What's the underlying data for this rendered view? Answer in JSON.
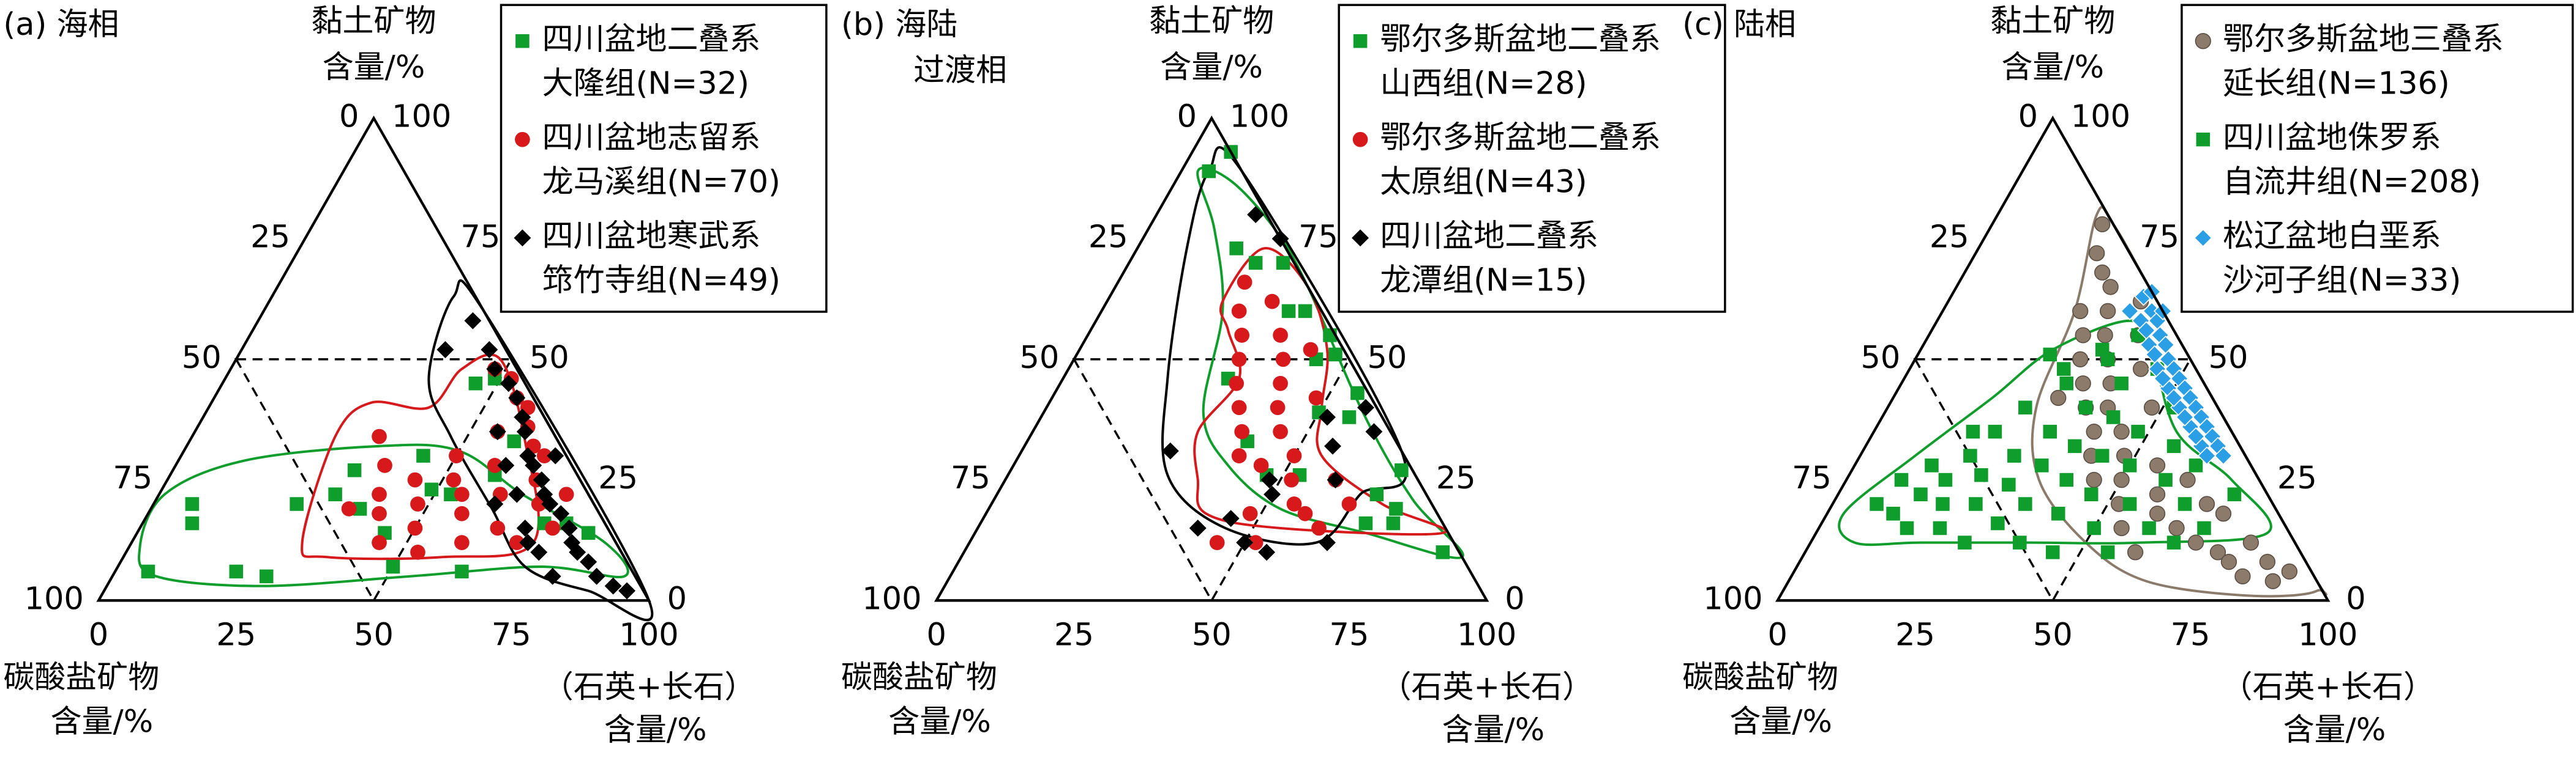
{
  "chart_data": [
    {
      "type": "ternary",
      "panel_label": [
        "(a) 海相"
      ],
      "top_axis_title": [
        "黏土矿物",
        "含量/%"
      ],
      "left_axis_title": [
        "碳酸盐矿物",
        "含量/%"
      ],
      "right_axis_title": [
        "（石英+长石）",
        "含量/%"
      ],
      "carbonate_ticks": [
        0,
        25,
        50,
        75,
        100
      ],
      "clay_ticks": [
        0,
        25,
        50,
        75,
        100
      ],
      "quartz_feldspar_ticks": [
        0,
        25,
        50,
        75,
        100
      ],
      "series": [
        {
          "name": [
            "四川盆地二叠系",
            "大隆组(N=32)"
          ],
          "color": "#0f9d2c",
          "marker": "square",
          "quartz_feldspar": [
            7,
            9,
            6,
            22,
            28,
            26,
            33,
            32,
            38,
            45,
            44,
            49,
            53,
            46,
            59,
            59,
            73,
            77,
            82,
            49,
            63,
            50
          ],
          "clay": [
            20,
            16,
            6,
            6,
            5,
            20,
            27,
            22,
            19,
            14,
            30,
            23,
            22,
            45,
            26,
            33,
            16,
            16,
            14,
            46,
            6,
            7
          ],
          "envelope": {
            "quartz_feldspar": [
              2,
              8,
              28,
              54,
              77,
              93,
              86,
              66,
              50,
              35,
              12,
              1
            ],
            "clay": [
              11,
              5,
              3,
              5,
              7,
              5,
              12,
              22,
              31,
              32,
              29,
              22
            ]
          }
        },
        {
          "name": [
            "四川盆地志留系",
            "龙马溪组(N=70)"
          ],
          "color": "#d7191c",
          "marker": "circle",
          "quartz_feldspar": [
            38,
            40,
            42,
            45,
            45,
            48,
            50,
            50,
            52,
            53,
            55,
            55,
            57,
            58,
            60,
            58,
            62,
            63,
            65,
            55,
            67,
            60,
            70,
            70,
            66,
            74,
            75,
            52,
            48,
            34,
            36
          ],
          "clay": [
            28,
            22,
            18,
            25,
            12,
            20,
            30,
            15,
            25,
            10,
            22,
            35,
            18,
            28,
            12,
            40,
            22,
            32,
            15,
            42,
            25,
            36,
            20,
            12,
            30,
            22,
            15,
            46,
            48,
            34,
            19
          ],
          "envelope": {
            "quartz_feldspar": [
              31,
              26,
              29,
              40,
              42,
              48,
              61,
              73,
              58,
              37
            ],
            "clay": [
              12,
              34,
              41,
              40,
              48,
              50,
              33,
              12,
              9,
              9
            ]
          }
        },
        {
          "name": [
            "四川盆地寒武系",
            "筇竹寺组(N=49)"
          ],
          "color": "#000000",
          "marker": "diamond",
          "quartz_feldspar": [
            39,
            37,
            45,
            48,
            52,
            55,
            58,
            55,
            60,
            63,
            60,
            65,
            68,
            70,
            65,
            72,
            75,
            70,
            78,
            80,
            75,
            82,
            85,
            88,
            80,
            92,
            95,
            62,
            72,
            68
          ],
          "clay": [
            58,
            52,
            52,
            48,
            45,
            42,
            38,
            35,
            35,
            30,
            28,
            28,
            25,
            22,
            22,
            20,
            18,
            15,
            15,
            12,
            10,
            10,
            8,
            5,
            5,
            3,
            2,
            20,
            12,
            30
          ],
          "envelope": {
            "quartz_feldspar": [
              33,
              40,
              100,
              88,
              74,
              62,
              47,
              37
            ],
            "clay": [
              63,
              60,
              0,
              2,
              7,
              19,
              34,
              46
            ]
          }
        }
      ]
    },
    {
      "type": "ternary",
      "panel_label": [
        "(b) 海陆",
        "过渡相"
      ],
      "top_axis_title": [
        "黏土矿物",
        "含量/%"
      ],
      "left_axis_title": [
        "碳酸盐矿物",
        "含量/%"
      ],
      "right_axis_title": [
        "（石英+长石）",
        "含量/%"
      ],
      "carbonate_ticks": [
        0,
        25,
        50,
        75,
        100
      ],
      "clay_ticks": [
        0,
        25,
        50,
        75,
        100
      ],
      "quartz_feldspar_ticks": [
        0,
        25,
        50,
        75,
        100
      ],
      "series": [
        {
          "name": [
            "鄂尔多斯盆地二叠系",
            "山西组(N=28)"
          ],
          "color": "#0f9d2c",
          "marker": "square",
          "quartz_feldspar": [
            5,
            7,
            18,
            23,
            28,
            34,
            37,
            44,
            44,
            47,
            55,
            56,
            30,
            40,
            47,
            53,
            50,
            69,
            71,
            74,
            70,
            75,
            87
          ],
          "clay": [
            89,
            93,
            73,
            70,
            70,
            60,
            60,
            55,
            50,
            51,
            43,
            38,
            46,
            33,
            26,
            26,
            39,
            22,
            27,
            19,
            16,
            16,
            10
          ],
          "envelope": {
            "quartz_feldspar": [
              3,
              12,
              22,
              29,
              39,
              53,
              71,
              91,
              76,
              58,
              35,
              23,
              10
            ],
            "clay": [
              89,
              77,
              60,
              39,
              28,
              19,
              14,
              9,
              21,
              39,
              65,
              77,
              87
            ]
          }
        },
        {
          "name": [
            "鄂尔多斯盆地二叠系",
            "太原组(N=43)"
          ],
          "color": "#d7191c",
          "marker": "circle",
          "quartz_feldspar": [
            23,
            25,
            28,
            30,
            32,
            35,
            35,
            38,
            40,
            42,
            45,
            48,
            50,
            40,
            45,
            52,
            55,
            48,
            58,
            60,
            62,
            52,
            45,
            65,
            38,
            30,
            42
          ],
          "clay": [
            66,
            60,
            55,
            50,
            45,
            40,
            55,
            50,
            45,
            40,
            35,
            42,
            30,
            30,
            28,
            25,
            20,
            18,
            18,
            25,
            15,
            12,
            12,
            20,
            35,
            62,
            52
          ],
          "envelope": {
            "quartz_feldspar": [
              21,
              25,
              32,
              30,
              35,
              40,
              55,
              85,
              71,
              55,
              50,
              45,
              35,
              23
            ],
            "clay": [
              62,
              56,
              46,
              35,
              25,
              18,
              15,
              14,
              20,
              30,
              40,
              52,
              65,
              73
            ]
          }
        },
        {
          "name": [
            "四川盆地二叠系",
            "龙潭组(N=15)"
          ],
          "color": "#000000",
          "marker": "diamond",
          "quartz_feldspar": [
            18,
            25,
            27,
            52,
            56,
            60,
            50,
            45,
            40,
            65,
            62,
            58,
            48,
            55,
            50
          ],
          "clay": [
            80,
            75,
            31,
            38,
            32,
            25,
            22,
            17,
            15,
            12,
            35,
            40,
            25,
            10,
            12
          ],
          "envelope": {
            "quartz_feldspar": [
              5,
              9,
              19,
              29,
              45,
              63,
              66,
              69,
              11
            ],
            "clay": [
              89,
              73,
              46,
              26,
              15,
              12,
              22,
              31,
              89
            ]
          }
        }
      ]
    },
    {
      "type": "ternary",
      "panel_label": [
        "(c) 陆相"
      ],
      "top_axis_title": [
        "黏土矿物",
        "含量/%"
      ],
      "left_axis_title": [
        "碳酸盐矿物",
        "含量/%"
      ],
      "right_axis_title": [
        "（石英+长石）",
        "含量/%"
      ],
      "carbonate_ticks": [
        0,
        25,
        50,
        75,
        100
      ],
      "clay_ticks": [
        0,
        25,
        50,
        75,
        100
      ],
      "quartz_feldspar_ticks": [
        0,
        25,
        50,
        75,
        100
      ],
      "series": [
        {
          "name": [
            "鄂尔多斯盆地三叠系",
            "延长组(N=136)"
          ],
          "color": "#8c7b6b",
          "marker": "circle",
          "quartz_feldspar": [
            20,
            22,
            25,
            28,
            25,
            30,
            28,
            32,
            30,
            35,
            33,
            38,
            36,
            40,
            40,
            45,
            42,
            48,
            45,
            50,
            52,
            55,
            58,
            60,
            62,
            65,
            68,
            70,
            72,
            75,
            78,
            80,
            82,
            85,
            88,
            90,
            38,
            35,
            30,
            48,
            55,
            60,
            42
          ],
          "clay": [
            78,
            72,
            68,
            65,
            60,
            60,
            55,
            55,
            50,
            50,
            45,
            45,
            40,
            40,
            35,
            35,
            30,
            30,
            25,
            25,
            20,
            28,
            22,
            18,
            25,
            15,
            20,
            12,
            18,
            10,
            8,
            12,
            5,
            8,
            4,
            6,
            55,
            62,
            42,
            40,
            15,
            10,
            48
          ],
          "envelope": {
            "quartz_feldspar": [
              18,
              24,
              27,
              35,
              50,
              65,
              85,
              97,
              93,
              40,
              22
            ],
            "clay": [
              80,
              60,
              40,
              25,
              12,
              4,
              1,
              2,
              7,
              60,
              78
            ]
          }
        },
        {
          "name": [
            "四川盆地侏罗系",
            "自流井组(N=208)"
          ],
          "color": "#0f9d2c",
          "marker": "square",
          "quartz_feldspar": [
            8,
            10,
            12,
            14,
            15,
            16,
            18,
            20,
            20,
            22,
            22,
            24,
            25,
            26,
            28,
            28,
            30,
            30,
            32,
            32,
            34,
            35,
            35,
            36,
            38,
            38,
            40,
            40,
            42,
            42,
            44,
            45,
            46,
            48,
            50,
            50,
            52,
            54,
            55,
            56,
            58,
            60,
            62,
            64,
            66,
            24,
            28,
            33,
            38,
            45,
            70,
            72,
            18
          ],
          "clay": [
            20,
            25,
            18,
            28,
            22,
            15,
            25,
            30,
            20,
            35,
            15,
            26,
            40,
            20,
            30,
            12,
            45,
            24,
            35,
            16,
            28,
            50,
            20,
            40,
            12,
            32,
            25,
            45,
            18,
            38,
            30,
            10,
            22,
            35,
            15,
            28,
            40,
            20,
            10,
            32,
            25,
            15,
            28,
            20,
            12,
            51,
            48,
            52,
            55,
            48,
            15,
            22,
            35
          ],
          "envelope": {
            "quartz_feldspar": [
              3,
              10,
              18,
              24,
              35,
              42,
              55,
              70,
              82,
              60,
              40,
              20,
              8
            ],
            "clay": [
              18,
              30,
              42,
              52,
              58,
              52,
              35,
              25,
              14,
              12,
              12,
              12,
              12
            ]
          }
        },
        {
          "name": [
            "松辽盆地白垩系",
            "沙河子组(N=33)"
          ],
          "color": "#2a9fe6",
          "marker": "diamond",
          "quartz_feldspar": [
            35,
            38,
            40,
            37,
            42,
            44,
            41,
            46,
            48,
            45,
            50,
            52,
            49,
            54,
            56,
            53,
            58,
            60,
            57,
            62,
            64,
            61,
            66,
            34,
            39,
            43,
            47,
            51,
            55,
            59,
            63,
            36,
            40
          ],
          "clay": [
            63,
            60,
            58,
            58,
            55,
            53,
            53,
            50,
            48,
            48,
            46,
            44,
            44,
            42,
            40,
            40,
            38,
            36,
            36,
            34,
            32,
            32,
            30,
            60,
            56,
            51,
            46,
            42,
            38,
            34,
            30,
            64,
            60
          ]
        }
      ]
    }
  ]
}
